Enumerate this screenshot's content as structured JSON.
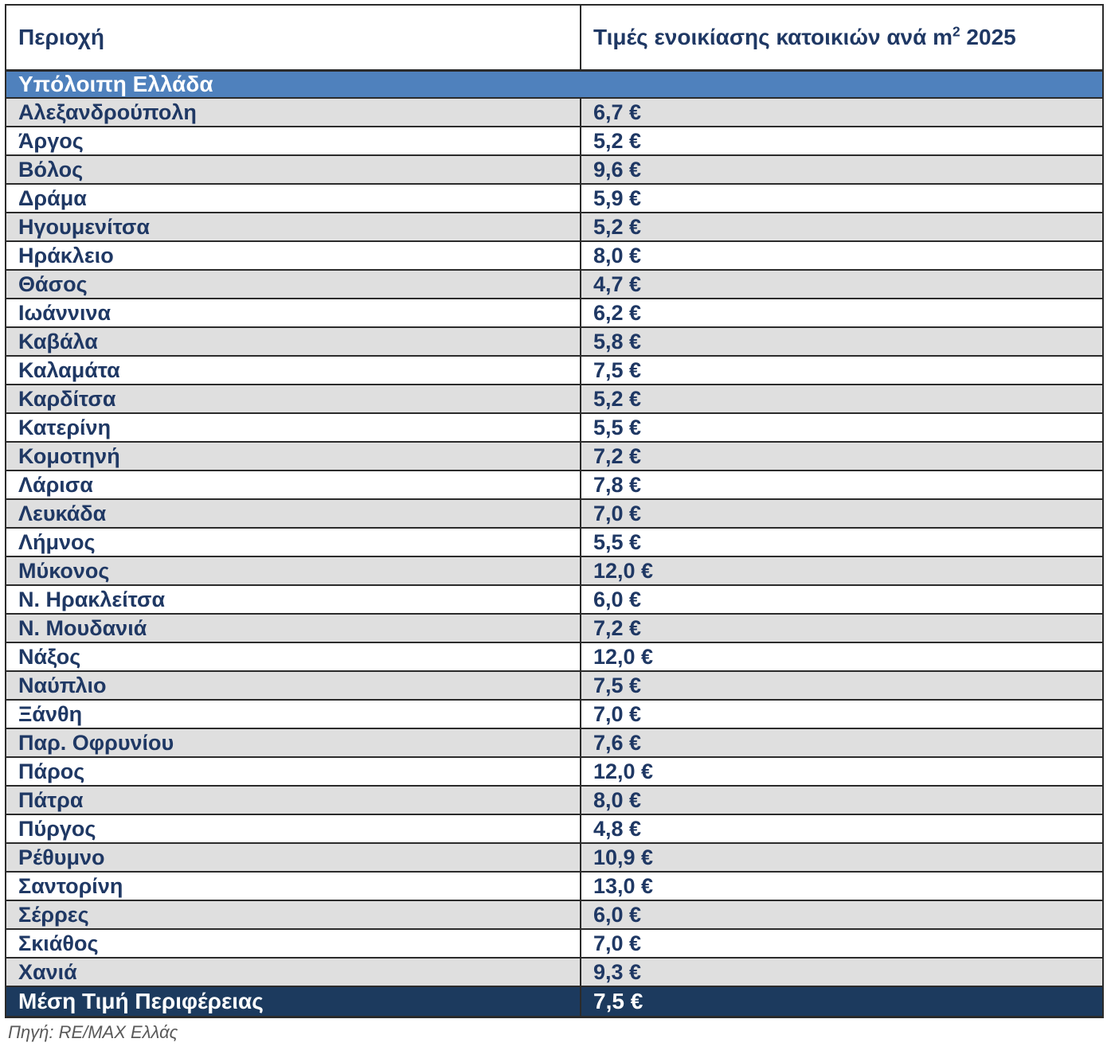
{
  "page": {
    "source_note": "Πηγή: RE/MAX Ελλάς"
  },
  "colors": {
    "header_text": "#1F3864",
    "banner_bg": "#4F81BD",
    "banner_text": "#FFFFFF",
    "footer_bg": "#1C3A5E",
    "footer_text": "#FFFFFF",
    "row_alt_bg": "#DFDFDF",
    "row_bg": "#FFFFFF",
    "border": "#2B2B2B",
    "source_text": "#595959"
  },
  "table": {
    "header": {
      "col1": "Περιοχή",
      "col2_prefix": "Τιμές ενοικίασης κατοικιών ανά m",
      "col2_sup": "2",
      "col2_suffix": " 2025"
    },
    "section": "Υπόλοιπη Ελλάδα",
    "rows": [
      {
        "region": "Αλεξανδρούπολη",
        "value": "6,7 €"
      },
      {
        "region": "Άργος",
        "value": "5,2 €"
      },
      {
        "region": "Βόλος",
        "value": "9,6 €"
      },
      {
        "region": "Δράμα",
        "value": "5,9 €"
      },
      {
        "region": "Ηγουμενίτσα",
        "value": "5,2 €"
      },
      {
        "region": "Ηράκλειο",
        "value": "8,0 €"
      },
      {
        "region": "Θάσος",
        "value": "4,7 €"
      },
      {
        "region": "Ιωάννινα",
        "value": "6,2 €"
      },
      {
        "region": "Καβάλα",
        "value": "5,8 €"
      },
      {
        "region": "Καλαμάτα",
        "value": "7,5 €"
      },
      {
        "region": "Καρδίτσα",
        "value": "5,2 €"
      },
      {
        "region": "Κατερίνη",
        "value": "5,5 €"
      },
      {
        "region": "Κομοτηνή",
        "value": "7,2 €"
      },
      {
        "region": "Λάρισα",
        "value": "7,8 €"
      },
      {
        "region": "Λευκάδα",
        "value": "7,0 €"
      },
      {
        "region": "Λήμνος",
        "value": "5,5 €"
      },
      {
        "region": "Μύκονος",
        "value": "12,0 €"
      },
      {
        "region": "Ν. Ηρακλείτσα",
        "value": "6,0 €"
      },
      {
        "region": "Ν. Μουδανιά",
        "value": "7,2 €"
      },
      {
        "region": "Νάξος",
        "value": "12,0 €"
      },
      {
        "region": "Ναύπλιο",
        "value": "7,5 €"
      },
      {
        "region": "Ξάνθη",
        "value": "7,0 €"
      },
      {
        "region": "Παρ. Οφρυνίου",
        "value": "7,6 €"
      },
      {
        "region": "Πάρος",
        "value": "12,0 €"
      },
      {
        "region": "Πάτρα",
        "value": "8,0 €"
      },
      {
        "region": "Πύργος",
        "value": "4,8 €"
      },
      {
        "region": "Ρέθυμνο",
        "value": "10,9 €"
      },
      {
        "region": "Σαντορίνη",
        "value": "13,0 €"
      },
      {
        "region": "Σέρρες",
        "value": "6,0 €"
      },
      {
        "region": "Σκιάθος",
        "value": "7,0 €"
      },
      {
        "region": "Χανιά",
        "value": "9,3 €"
      }
    ],
    "footer": {
      "label": "Μέση Τιμή Περιφέρειας",
      "value": "7,5 €"
    }
  }
}
